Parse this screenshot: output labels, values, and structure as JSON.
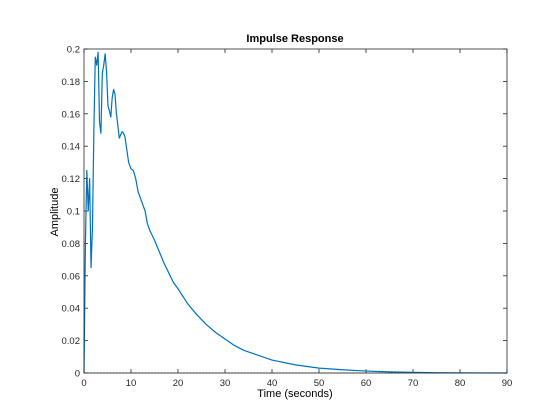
{
  "chart_data": {
    "type": "line",
    "title": "Impulse Response",
    "xlabel": "Time (seconds)",
    "ylabel": "Amplitude",
    "xlim": [
      0,
      90
    ],
    "ylim": [
      0,
      0.2
    ],
    "x_ticks": [
      "0",
      "10",
      "20",
      "30",
      "40",
      "50",
      "60",
      "70",
      "80",
      "90"
    ],
    "y_ticks": [
      "0",
      "0.02",
      "0.04",
      "0.06",
      "0.08",
      "0.1",
      "0.12",
      "0.14",
      "0.16",
      "0.18",
      "0.2"
    ],
    "grid": false,
    "series_color": "#0072BD",
    "series": [
      {
        "x": [
          0,
          0.3,
          0.6,
          0.9,
          1.2,
          1.5,
          1.8,
          2.1,
          2.4,
          2.7,
          3.0,
          3.3,
          3.6,
          3.9,
          4.2,
          4.5,
          4.8,
          5.1,
          5.4,
          5.7,
          6.0,
          6.3,
          6.6,
          6.9,
          7.2,
          7.5,
          7.8,
          8.1,
          8.4,
          8.7,
          9.0,
          9.5,
          10.0,
          10.5,
          11.0,
          11.5,
          12.0,
          12.5,
          13.0,
          13.5,
          14.0,
          14.5,
          15.0,
          16.0,
          17.0,
          18.0,
          19.0,
          20.0,
          22.0,
          24.0,
          26.0,
          28.0,
          30.0,
          32.0,
          34.0,
          36.0,
          38.0,
          40.0,
          45.0,
          50.0,
          55.0,
          60.0,
          65.0,
          70.0,
          75.0,
          80.0,
          85.0,
          90.0
        ],
        "y": [
          0,
          0.08,
          0.125,
          0.1,
          0.12,
          0.065,
          0.09,
          0.15,
          0.195,
          0.19,
          0.198,
          0.155,
          0.148,
          0.185,
          0.19,
          0.197,
          0.186,
          0.165,
          0.162,
          0.158,
          0.17,
          0.175,
          0.172,
          0.16,
          0.153,
          0.145,
          0.147,
          0.149,
          0.148,
          0.146,
          0.14,
          0.13,
          0.126,
          0.125,
          0.12,
          0.112,
          0.108,
          0.104,
          0.1,
          0.092,
          0.088,
          0.085,
          0.082,
          0.075,
          0.068,
          0.062,
          0.056,
          0.052,
          0.043,
          0.036,
          0.03,
          0.025,
          0.021,
          0.017,
          0.014,
          0.012,
          0.01,
          0.008,
          0.005,
          0.003,
          0.002,
          0.0012,
          0.0007,
          0.0004,
          0.0002,
          0.0001,
          5e-05,
          2e-05
        ]
      }
    ]
  }
}
